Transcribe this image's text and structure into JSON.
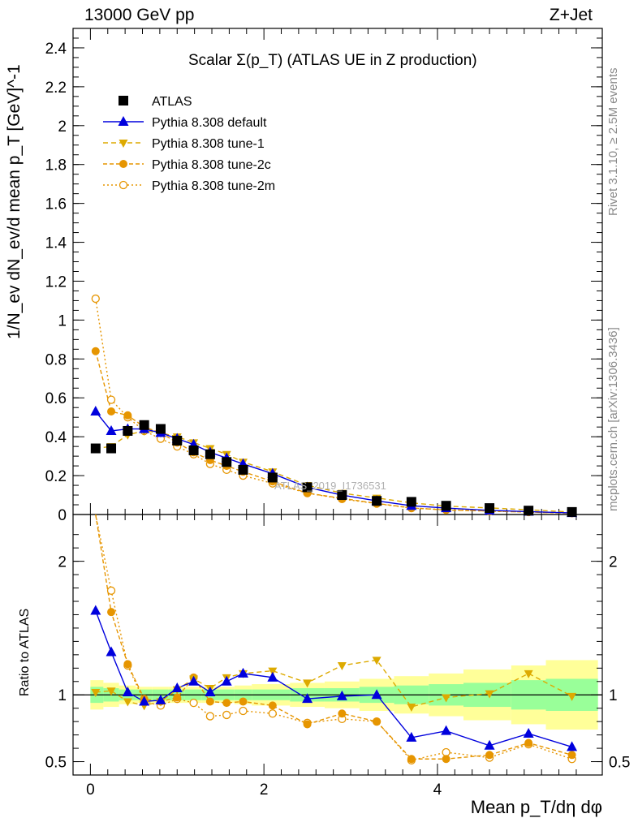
{
  "header": {
    "left": "13000 GeV pp",
    "right": "Z+Jet"
  },
  "side_labels": {
    "rivet": "Rivet 3.1.10, ≥ 2.5M events",
    "mcplots": "mcplots.cern.ch [arXiv:1306.3436]"
  },
  "watermark": "ATLAS_2019_I1736531",
  "colors": {
    "atlas": "#000000",
    "default": "#0000dd",
    "tune1": "#ddaa00",
    "tune2c": "#e69500",
    "tune2m": "#e69500",
    "band_inner": "#99ff99",
    "band_outer": "#ffff99"
  },
  "chart_data": [
    {
      "type": "line",
      "title": "Scalar Σ(p_T) (ATLAS UE in Z production)",
      "ylabel": "1/N_ev dN_ev/d mean p_T [GeV]^-1",
      "xlim": [
        -0.2,
        5.9
      ],
      "ylim": [
        0,
        2.5
      ],
      "yticks": [
        "0",
        "0.2",
        "0.4",
        "0.6",
        "0.8",
        "1",
        "1.2",
        "1.4",
        "1.6",
        "1.8",
        "2",
        "2.2",
        "2.4"
      ],
      "legend_position": "top-left",
      "x": [
        0.06,
        0.24,
        0.43,
        0.62,
        0.81,
        1.0,
        1.19,
        1.38,
        1.57,
        1.76,
        2.1,
        2.5,
        2.9,
        3.3,
        3.7,
        4.1,
        4.6,
        5.05,
        5.55
      ],
      "series": [
        {
          "name": "ATLAS",
          "marker": "square",
          "values": [
            0.34,
            0.34,
            0.43,
            0.46,
            0.44,
            0.38,
            0.33,
            0.31,
            0.27,
            0.23,
            0.19,
            0.14,
            0.1,
            0.07,
            0.065,
            0.045,
            0.033,
            0.02,
            0.013
          ]
        },
        {
          "name": "Pythia 8.308 default",
          "marker": "triangle-up",
          "values": [
            0.53,
            0.43,
            0.44,
            0.44,
            0.42,
            0.39,
            0.36,
            0.32,
            0.29,
            0.26,
            0.21,
            0.14,
            0.1,
            0.07,
            0.045,
            0.033,
            0.021,
            0.015,
            0.008
          ]
        },
        {
          "name": "Pythia 8.308 tune-1",
          "marker": "triangle-down",
          "values": [
            0.34,
            0.35,
            0.41,
            0.43,
            0.42,
            0.4,
            0.37,
            0.34,
            0.31,
            0.27,
            0.22,
            0.15,
            0.11,
            0.085,
            0.06,
            0.043,
            0.034,
            0.024,
            0.013
          ]
        },
        {
          "name": "Pythia 8.308 tune-2c",
          "marker": "circle",
          "values": [
            0.84,
            0.53,
            0.51,
            0.45,
            0.42,
            0.37,
            0.32,
            0.28,
            0.25,
            0.22,
            0.17,
            0.11,
            0.083,
            0.057,
            0.034,
            0.023,
            0.018,
            0.012,
            0.007
          ]
        },
        {
          "name": "Pythia 8.308 tune-2m",
          "marker": "circle-open",
          "values": [
            1.11,
            0.59,
            0.5,
            0.43,
            0.39,
            0.35,
            0.31,
            0.26,
            0.23,
            0.2,
            0.16,
            0.11,
            0.08,
            0.056,
            0.033,
            0.025,
            0.017,
            0.013,
            0.007
          ]
        }
      ]
    },
    {
      "type": "line",
      "ylabel": "Ratio to ATLAS",
      "xlabel": "Mean p_T/dη dφ",
      "xlim": [
        -0.2,
        5.9
      ],
      "xticks": [
        "0",
        "2",
        "4"
      ],
      "ylim": [
        0.4,
        2.35
      ],
      "yticks": [
        "0.5",
        "1",
        "2"
      ],
      "bin_edges": [
        0,
        0.15,
        0.33,
        0.52,
        0.71,
        0.9,
        1.09,
        1.28,
        1.47,
        1.66,
        1.86,
        2.3,
        2.7,
        3.1,
        3.5,
        3.9,
        4.3,
        4.85,
        5.25,
        5.85
      ],
      "band_inner": [
        0.06,
        0.05,
        0.04,
        0.04,
        0.04,
        0.04,
        0.04,
        0.04,
        0.04,
        0.04,
        0.04,
        0.05,
        0.05,
        0.06,
        0.07,
        0.08,
        0.09,
        0.11,
        0.12
      ],
      "band_outer": [
        0.11,
        0.09,
        0.07,
        0.06,
        0.06,
        0.06,
        0.06,
        0.06,
        0.06,
        0.07,
        0.08,
        0.09,
        0.1,
        0.12,
        0.14,
        0.16,
        0.19,
        0.22,
        0.26
      ],
      "series": [
        {
          "name": "Pythia 8.308 default",
          "values": [
            1.63,
            1.32,
            1.02,
            0.95,
            0.96,
            1.05,
            1.1,
            1.02,
            1.1,
            1.16,
            1.13,
            0.97,
            0.99,
            1.0,
            0.68,
            0.73,
            0.62,
            0.71,
            0.61
          ]
        },
        {
          "name": "Pythia 8.308 tune-1",
          "values": [
            1.02,
            1.03,
            0.95,
            0.92,
            0.95,
            1.04,
            1.12,
            1.05,
            1.13,
            1.16,
            1.18,
            1.09,
            1.22,
            1.26,
            0.91,
            0.98,
            1.01,
            1.16,
            0.99
          ]
        },
        {
          "name": "Pythia 8.308 tune-2c",
          "values": [
            2.44,
            1.62,
            1.23,
            0.97,
            0.95,
            0.98,
            1.13,
            0.95,
            0.94,
            0.95,
            0.92,
            0.78,
            0.86,
            0.8,
            0.52,
            0.52,
            0.55,
            0.64,
            0.55
          ]
        },
        {
          "name": "Pythia 8.308 tune-2m",
          "values": [
            3.2,
            1.78,
            1.22,
            0.95,
            0.92,
            0.97,
            0.94,
            0.84,
            0.85,
            0.88,
            0.86,
            0.79,
            0.82,
            0.8,
            0.51,
            0.57,
            0.53,
            0.63,
            0.52
          ]
        }
      ]
    }
  ]
}
